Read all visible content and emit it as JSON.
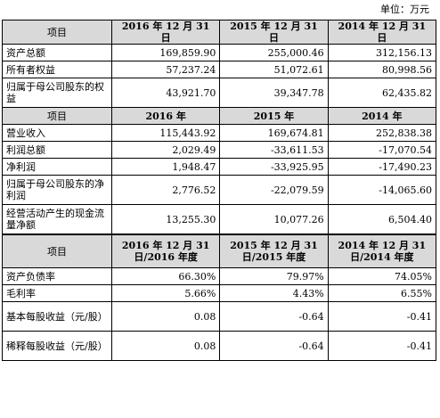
{
  "unit_label": "单位：万元",
  "section1": {
    "headers": [
      "项目",
      "2016 年 12 月 31 日",
      "2015 年 12 月 31 日",
      "2014 年 12 月 31 日"
    ],
    "rows": [
      {
        "label": "资产总额",
        "values": [
          "169,859.90",
          "255,000.46",
          "312,156.13"
        ]
      },
      {
        "label": "所有者权益",
        "values": [
          "57,237.24",
          "51,072.61",
          "80,998.56"
        ]
      },
      {
        "label": "归属于母公司股东的权益",
        "values": [
          "43,921.70",
          "39,347.78",
          "62,435.82"
        ]
      }
    ]
  },
  "section2": {
    "headers": [
      "项目",
      "2016 年",
      "2015 年",
      "2014 年"
    ],
    "rows": [
      {
        "label": "营业收入",
        "values": [
          "115,443.92",
          "169,674.81",
          "252,838.38"
        ]
      },
      {
        "label": "利润总额",
        "values": [
          "2,029.49",
          "-33,611.53",
          "-17,070.54"
        ]
      },
      {
        "label": "净利润",
        "values": [
          "1,948.47",
          "-33,925.95",
          "-17,490.23"
        ]
      },
      {
        "label": "归属于母公司股东的净利润",
        "values": [
          "2,776.52",
          "-22,079.59",
          "-14,065.60"
        ]
      },
      {
        "label": "经营活动产生的现金流量净额",
        "values": [
          "13,255.30",
          "10,077.26",
          "6,504.40"
        ]
      }
    ]
  },
  "section3": {
    "headers": [
      "项目",
      "2016 年 12 月 31 日/2016 年度",
      "2015 年 12 月 31 日/2015 年度",
      "2014 年 12 月 31 日/2014 年度"
    ],
    "rows": [
      {
        "label": "资产负债率",
        "values": [
          "66.30%",
          "79.97%",
          "74.05%"
        ]
      },
      {
        "label": "毛利率",
        "values": [
          "5.66%",
          "4.43%",
          "6.55%"
        ]
      },
      {
        "label": "基本每股收益（元/股）",
        "values": [
          "0.08",
          "-0.64",
          "-0.41"
        ]
      },
      {
        "label": "稀释每股收益（元/股）",
        "values": [
          "0.08",
          "-0.64",
          "-0.41"
        ]
      }
    ]
  }
}
